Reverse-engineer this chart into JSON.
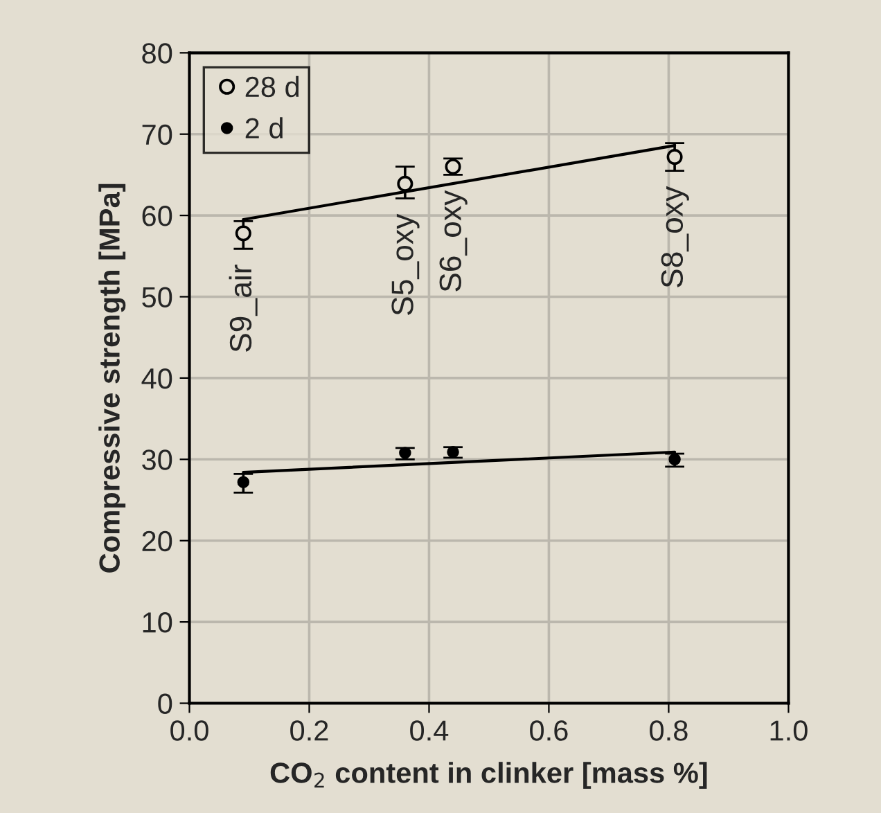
{
  "chart_data": {
    "type": "scatter",
    "xlabel": "CO$_{2}$ content in clinker [mass %]",
    "ylabel": "Compressive strength [MPa]",
    "xlim": [
      0,
      1
    ],
    "xticks": [
      {
        "value": 0,
        "label": "0.0"
      },
      {
        "value": 0.2,
        "label": "0.2"
      },
      {
        "value": 0.4,
        "label": "0.4"
      },
      {
        "value": 0.6,
        "label": "0.6"
      },
      {
        "value": 0.8,
        "label": "0.8"
      },
      {
        "value": 1,
        "label": "1.0"
      }
    ],
    "ylim": [
      0,
      80
    ],
    "yticks": [
      0,
      10,
      20,
      30,
      40,
      50,
      60,
      70,
      80
    ],
    "grid": true,
    "legend": "top left",
    "series": [
      {
        "name": "28 d",
        "marker": "circle",
        "color": "#000000",
        "x": [
          0.09,
          0.36,
          0.44,
          0.81
        ],
        "values": [
          57.8,
          63.9,
          66.0,
          67.2
        ],
        "errors": [
          [
            55.9,
            59.3
          ],
          [
            62.1,
            66.0
          ],
          [
            65.0,
            67.0
          ],
          [
            65.5,
            68.9
          ]
        ]
      },
      {
        "name": "2 d",
        "marker": "circle",
        "color": "#000000",
        "x": [
          0.09,
          0.36,
          0.44,
          0.81
        ],
        "values": [
          27.2,
          30.8,
          30.9,
          30.0
        ],
        "errors": [
          [
            25.9,
            28.2
          ],
          [
            30.0,
            31.4
          ],
          [
            30.2,
            31.5
          ],
          [
            29.1,
            30.7
          ]
        ]
      },
      {
        "type": "line",
        "marker": "none",
        "color": "#000000",
        "x": [
          0.09,
          0.81
        ],
        "values": [
          59.5,
          68.6
        ]
      },
      {
        "type": "line",
        "marker": "none",
        "color": "#000000",
        "x": [
          0.09,
          0.81
        ],
        "values": [
          28.4,
          30.9
        ]
      }
    ],
    "annotations": [
      "S9_air",
      "S5_oxy",
      "S6_oxy",
      "S8_oxy"
    ]
  }
}
